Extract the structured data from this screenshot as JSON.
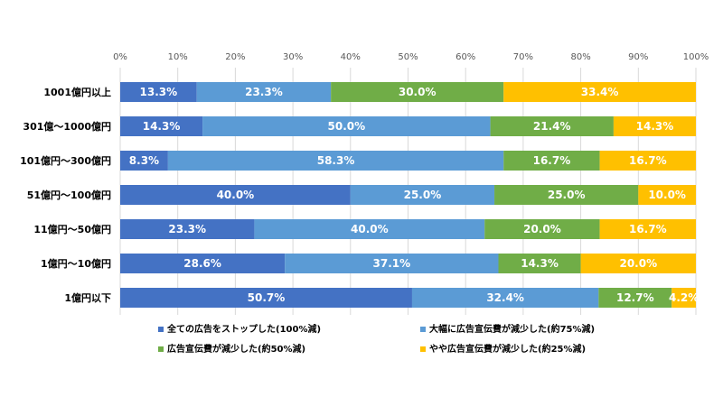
{
  "chart_data": {
    "type": "bar",
    "orientation": "horizontal",
    "stacked": true,
    "title": "",
    "xlabel": "",
    "ylabel": "",
    "xlim": [
      0,
      100
    ],
    "x_ticks": [
      "0%",
      "10%",
      "20%",
      "30%",
      "40%",
      "50%",
      "60%",
      "70%",
      "80%",
      "90%",
      "100%"
    ],
    "grid": true,
    "legend_position": "bottom",
    "categories": [
      "1001億円以上",
      "301億～1000億円",
      "101億円～300億円",
      "51億円～100億円",
      "11億円～50億円",
      "1億円～10億円",
      "1億円以下"
    ],
    "series": [
      {
        "name": "全ての広告をストップした(100%減)",
        "color": "#4472C4",
        "values": [
          13.3,
          14.3,
          8.3,
          40.0,
          23.3,
          28.6,
          50.7
        ],
        "labels": [
          "13.3%",
          "14.3%",
          "8.3%",
          "40.0%",
          "23.3%",
          "28.6%",
          "50.7%"
        ]
      },
      {
        "name": "大幅に広告宣伝費が減少した(約75%減)",
        "color": "#5B9BD5",
        "values": [
          23.3,
          50.0,
          58.3,
          25.0,
          40.0,
          37.1,
          32.4
        ],
        "labels": [
          "23.3%",
          "50.0%",
          "58.3%",
          "25.0%",
          "40.0%",
          "37.1%",
          "32.4%"
        ]
      },
      {
        "name": "広告宣伝費が減少した(約50%減)",
        "color": "#70AD47",
        "values": [
          30.0,
          21.4,
          16.7,
          25.0,
          20.0,
          14.3,
          12.7
        ],
        "labels": [
          "30.0%",
          "21.4%",
          "16.7%",
          "25.0%",
          "20.0%",
          "14.3%",
          "12.7%"
        ]
      },
      {
        "name": "やや広告宣伝費が減少した(約25%減)",
        "color": "#FFC000",
        "values": [
          33.4,
          14.3,
          16.7,
          10.0,
          16.7,
          20.0,
          4.2
        ],
        "labels": [
          "33.4%",
          "14.3%",
          "16.7%",
          "10.0%",
          "16.7%",
          "20.0%",
          "4.2%"
        ]
      }
    ]
  }
}
